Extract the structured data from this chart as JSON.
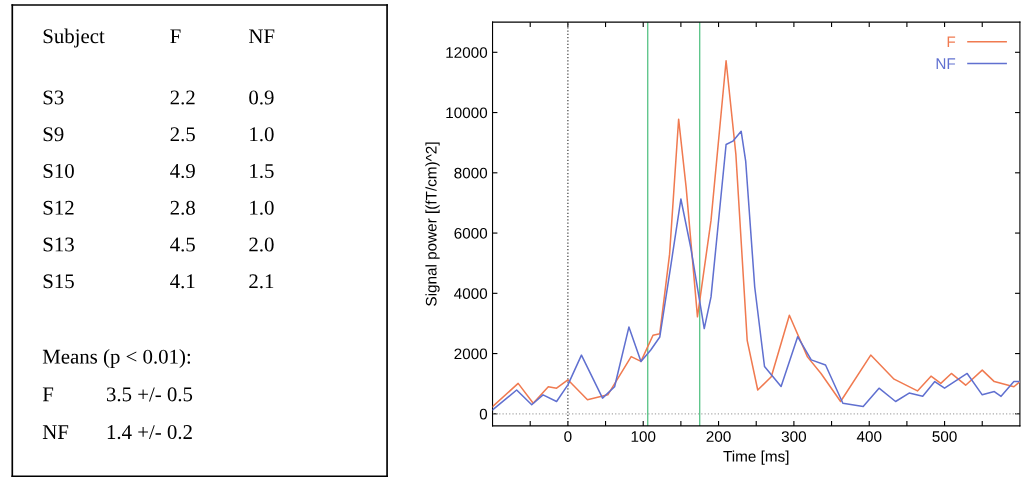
{
  "chart_data": [
    {
      "type": "other",
      "annotations": [
        "Subject",
        "F",
        "NF",
        "S3",
        "2.2",
        "0.9",
        "S9",
        "2.5",
        "1.0",
        "S10",
        "4.9",
        "1.5",
        "S12",
        "2.8",
        "1.0",
        "S13",
        "4.5",
        "2.0",
        "S15",
        "4.1",
        "2.1",
        "Means (p < 0.01):",
        "F",
        "3.5 +/- 0.5",
        "NF",
        "1.4 +/- 0.2"
      ]
    },
    {
      "type": "line",
      "xlabel": "Time [ms]",
      "ylabel": "Signal power [(fT/cm)^2]",
      "xlim": [
        -100,
        600
      ],
      "ylim": [
        -400,
        13000
      ],
      "xticks": [
        {
          "value": -50,
          "label": null
        },
        0,
        {
          "value": 50,
          "label": null
        },
        100,
        {
          "value": 150,
          "label": null
        },
        200,
        {
          "value": 250,
          "label": null
        },
        300,
        {
          "value": 350,
          "label": null
        },
        400,
        {
          "value": 450,
          "label": null
        },
        500,
        {
          "value": 550,
          "label": null
        }
      ],
      "yticks": [
        0,
        2000,
        4000,
        6000,
        8000,
        10000,
        12000
      ],
      "grid": false,
      "legend": "top right",
      "line_style": "solid",
      "marker": "none",
      "ref_lines": [
        {
          "axis": "y",
          "value": 0,
          "label": null,
          "color": "#aaaaaa",
          "line_style": "dotted"
        },
        {
          "axis": "x",
          "value": 0,
          "label": null,
          "color": "#444444",
          "line_style": "dotted"
        },
        {
          "axis": "x",
          "value": 106,
          "label": null,
          "color": "#50c080",
          "line_style": "solid"
        },
        {
          "axis": "x",
          "value": 175,
          "label": null,
          "color": "#50c080",
          "line_style": "solid"
        }
      ],
      "series": [
        {
          "name": "F",
          "color": "#f07a50",
          "x": [
            -100,
            -66,
            -46,
            -26,
            -15,
            0,
            26,
            53,
            84,
            97,
            113,
            122,
            135,
            147,
            157,
            172,
            190,
            210,
            223,
            238,
            252,
            270,
            294,
            318,
            336,
            362,
            402,
            433,
            464,
            482,
            495,
            509,
            528,
            550,
            566,
            592,
            600
          ],
          "values": [
            240,
            1010,
            350,
            900,
            850,
            1130,
            470,
            630,
            1900,
            1740,
            2610,
            2660,
            5300,
            9780,
            7510,
            3220,
            6420,
            11720,
            8610,
            2440,
            790,
            1230,
            3270,
            1890,
            1340,
            410,
            1950,
            1150,
            760,
            1250,
            1010,
            1340,
            950,
            1450,
            1070,
            900,
            1070
          ]
        },
        {
          "name": "NF",
          "color": "#6070d0",
          "x": [
            -100,
            -68,
            -48,
            -33,
            -15,
            0,
            18,
            46,
            62,
            81,
            97,
            110,
            122,
            137,
            150,
            163,
            181,
            190,
            210,
            219,
            230,
            236,
            248,
            261,
            283,
            305,
            323,
            342,
            365,
            392,
            413,
            435,
            453,
            471,
            487,
            500,
            530,
            550,
            566,
            575,
            592,
            600
          ],
          "values": [
            130,
            790,
            300,
            630,
            410,
            960,
            1950,
            520,
            900,
            2880,
            1740,
            2120,
            2550,
            4980,
            7130,
            5530,
            2830,
            3880,
            8940,
            9050,
            9380,
            8390,
            4210,
            1570,
            910,
            2560,
            1790,
            1620,
            350,
            240,
            850,
            410,
            690,
            580,
            1070,
            850,
            1340,
            630,
            740,
            580,
            1070,
            1070
          ]
        }
      ]
    }
  ]
}
